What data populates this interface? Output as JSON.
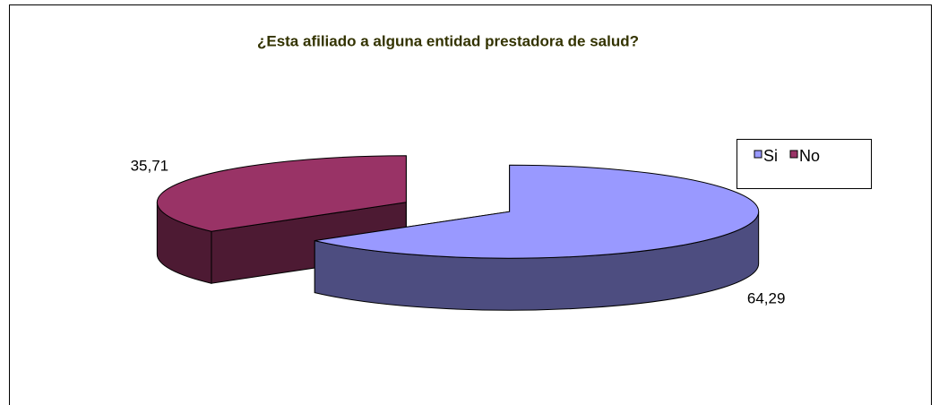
{
  "chart_data": {
    "type": "pie",
    "title": "¿Esta afiliado a alguna entidad prestadora de salud?",
    "categories": [
      "Si",
      "No"
    ],
    "values": [
      64.29,
      35.71
    ],
    "value_labels": [
      "64,29",
      "35,71"
    ],
    "colors": [
      "#9999FF",
      "#993366"
    ],
    "exploded": true
  }
}
